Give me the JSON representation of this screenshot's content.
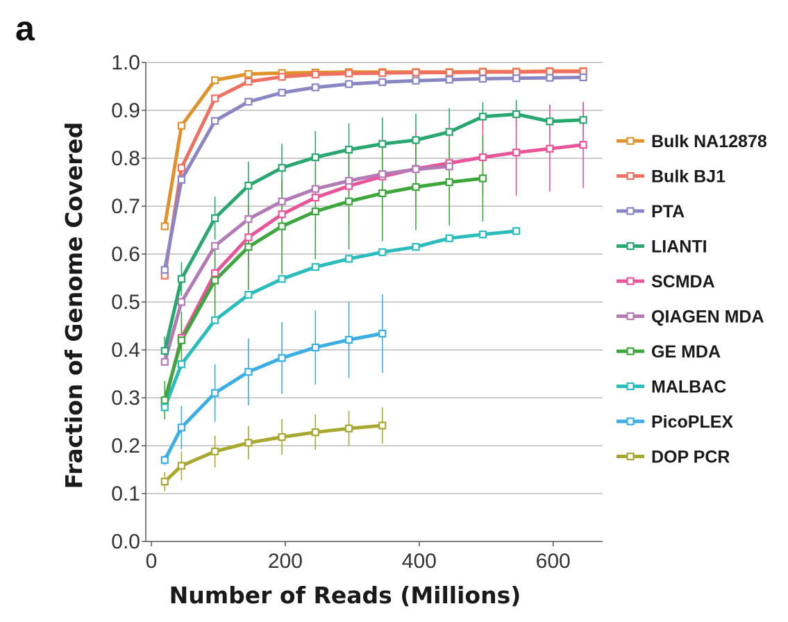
{
  "panel_label": "a",
  "chart_data": {
    "type": "line",
    "title": "",
    "xlabel": "Number of Reads (Millions)",
    "ylabel": "Fraction of Genome Covered",
    "xlim": [
      0,
      650
    ],
    "ylim": [
      0,
      1.0
    ],
    "xticks": [
      0,
      200,
      400,
      600
    ],
    "xtick_labels": [
      "0",
      "200",
      "400",
      "600"
    ],
    "yticks": [
      0.0,
      0.1,
      0.2,
      0.3,
      0.4,
      0.5,
      0.6,
      0.7,
      0.8,
      0.9,
      1.0
    ],
    "ytick_labels": [
      "0.0",
      "0.1",
      "0.2",
      "0.3",
      "0.4",
      "0.5",
      "0.6",
      "0.7",
      "0.8",
      "0.9",
      "1.0"
    ],
    "grid": "horizontal",
    "legend_position": "right",
    "series": [
      {
        "name": "Bulk NA12878",
        "color": "#E0922A",
        "x": [
          20,
          45,
          95,
          145,
          195,
          245,
          295,
          345,
          395,
          445,
          495,
          545,
          595,
          645
        ],
        "y": [
          0.658,
          0.868,
          0.963,
          0.976,
          0.978,
          0.979,
          0.98,
          0.98,
          0.98,
          0.98,
          0.981,
          0.981,
          0.982,
          0.982
        ],
        "err": []
      },
      {
        "name": "Bulk BJ1",
        "color": "#EF6F61",
        "x": [
          20,
          45,
          95,
          145,
          195,
          245,
          295,
          345,
          395,
          445,
          495,
          545,
          595,
          645
        ],
        "y": [
          0.555,
          0.78,
          0.925,
          0.96,
          0.97,
          0.975,
          0.977,
          0.978,
          0.979,
          0.979,
          0.98,
          0.98,
          0.981,
          0.981
        ],
        "err": []
      },
      {
        "name": "PTA",
        "color": "#8A86C4",
        "x": [
          20,
          45,
          95,
          145,
          195,
          245,
          295,
          345,
          395,
          445,
          495,
          545,
          595,
          645
        ],
        "y": [
          0.567,
          0.755,
          0.878,
          0.918,
          0.937,
          0.948,
          0.955,
          0.959,
          0.962,
          0.964,
          0.966,
          0.967,
          0.968,
          0.969
        ],
        "err": []
      },
      {
        "name": "LIANTI",
        "color": "#28A870",
        "x": [
          20,
          45,
          95,
          145,
          195,
          245,
          295,
          345,
          395,
          445,
          495,
          545,
          595,
          645
        ],
        "y": [
          0.398,
          0.548,
          0.675,
          0.743,
          0.78,
          0.802,
          0.818,
          0.83,
          0.838,
          0.855,
          0.887,
          0.892,
          0.877,
          0.88
        ],
        "err": [
          0.03,
          0.035,
          0.045,
          0.05,
          0.05,
          0.055,
          0.055,
          0.055,
          0.055,
          0.05,
          0.03,
          0.03,
          0.035,
          0.035
        ]
      },
      {
        "name": "SCMDA",
        "color": "#E8559A",
        "x": [
          20,
          45,
          95,
          145,
          195,
          245,
          295,
          345,
          395,
          445,
          495,
          545,
          595,
          645
        ],
        "y": [
          0.29,
          0.425,
          0.56,
          0.635,
          0.683,
          0.718,
          0.742,
          0.762,
          0.778,
          0.79,
          0.802,
          0.812,
          0.82,
          0.828
        ],
        "err": [
          0.02,
          0.03,
          0.05,
          0.06,
          0.07,
          0.08,
          0.08,
          0.08,
          0.08,
          0.08,
          0.08,
          0.09,
          0.09,
          0.09
        ]
      },
      {
        "name": "QIAGEN MDA",
        "color": "#B37BB5",
        "x": [
          20,
          45,
          95,
          145,
          195,
          245,
          295,
          345,
          395,
          445
        ],
        "y": [
          0.375,
          0.5,
          0.617,
          0.673,
          0.71,
          0.736,
          0.753,
          0.767,
          0.777,
          0.783
        ],
        "err": []
      },
      {
        "name": "GE MDA",
        "color": "#3DA63D",
        "x": [
          20,
          45,
          95,
          145,
          195,
          245,
          295,
          345,
          395,
          445,
          495
        ],
        "y": [
          0.295,
          0.42,
          0.545,
          0.615,
          0.658,
          0.689,
          0.71,
          0.727,
          0.74,
          0.75,
          0.758
        ],
        "err": [
          0.04,
          0.06,
          0.08,
          0.09,
          0.1,
          0.1,
          0.1,
          0.1,
          0.09,
          0.09,
          0.09
        ]
      },
      {
        "name": "MALBAC",
        "color": "#2BBCBC",
        "x": [
          20,
          45,
          95,
          145,
          195,
          245,
          295,
          345,
          395,
          445,
          495,
          545
        ],
        "y": [
          0.28,
          0.37,
          0.462,
          0.515,
          0.548,
          0.573,
          0.59,
          0.604,
          0.615,
          0.633,
          0.641,
          0.648
        ],
        "err": []
      },
      {
        "name": "PicoPLEX",
        "color": "#3BAEE3",
        "x": [
          20,
          45,
          95,
          145,
          195,
          245,
          295,
          345
        ],
        "y": [
          0.17,
          0.238,
          0.31,
          0.354,
          0.383,
          0.405,
          0.421,
          0.434
        ],
        "err": [
          0.01,
          0.045,
          0.06,
          0.07,
          0.075,
          0.077,
          0.08,
          0.082
        ]
      },
      {
        "name": "DOP PCR",
        "color": "#A8A832",
        "x": [
          20,
          45,
          95,
          145,
          195,
          245,
          295,
          345
        ],
        "y": [
          0.125,
          0.158,
          0.188,
          0.206,
          0.218,
          0.228,
          0.236,
          0.242
        ],
        "err": [
          0.02,
          0.03,
          0.033,
          0.035,
          0.037,
          0.037,
          0.037,
          0.038
        ]
      }
    ]
  }
}
